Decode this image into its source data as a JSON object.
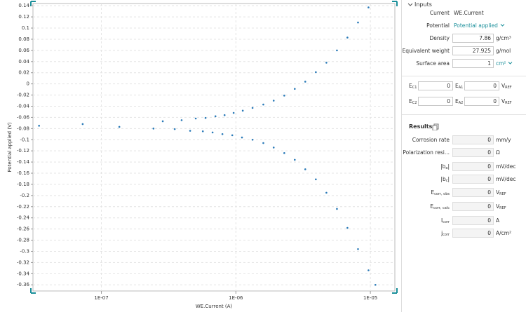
{
  "chart_data": {
    "type": "scatter",
    "xlabel": "WE.Current (A)",
    "ylabel": "Potential applied (V)",
    "xscale": "log",
    "grid": true,
    "xlim": [
      3.1e-08,
      1.52e-05
    ],
    "ylim": [
      -0.371,
      0.144
    ],
    "xticks": [
      {
        "value": 1e-07,
        "label": "1E-07"
      },
      {
        "value": 1e-06,
        "label": "1E-06"
      },
      {
        "value": 1e-05,
        "label": "1E-05"
      }
    ],
    "yticks": [
      0.14,
      0.12,
      0.1,
      0.08,
      0.06,
      0.04,
      0.02,
      0,
      -0.02,
      -0.04,
      -0.06,
      -0.08,
      -0.1,
      -0.12,
      -0.14,
      -0.16,
      -0.18,
      -0.2,
      -0.22,
      -0.24,
      -0.26,
      -0.28,
      -0.3,
      -0.32,
      -0.34,
      -0.36
    ],
    "series": [
      {
        "color": "#2a7ab8",
        "x": [
          3.44e-08,
          7.26e-08,
          1.36e-07,
          2.86e-07,
          3.95e-07,
          5.03e-07,
          5.95e-07,
          7.05e-07,
          8.24e-07,
          9.62e-07,
          1.125e-06,
          1.33e-06,
          1.6e-06,
          1.91e-06,
          2.29e-06,
          2.74e-06,
          3.28e-06,
          3.93e-06,
          4.71e-06,
          5.64e-06,
          6.75e-06,
          8.09e-06,
          9.68e-06
        ],
        "values": [
          -0.075,
          -0.072,
          -0.077,
          -0.067,
          -0.065,
          -0.062,
          -0.061,
          -0.058,
          -0.056,
          -0.052,
          -0.048,
          -0.043,
          -0.037,
          -0.03,
          -0.021,
          -0.009,
          0.004,
          0.021,
          0.038,
          0.06,
          0.083,
          0.11,
          0.137
        ]
      },
      {
        "color": "#2a7ab8",
        "x": [
          2.44e-07,
          3.51e-07,
          4.57e-07,
          5.68e-07,
          6.71e-07,
          7.94e-07,
          9.4e-07,
          1.11e-06,
          1.33e-06,
          1.6e-06,
          1.91e-06,
          2.29e-06,
          2.74e-06,
          3.28e-06,
          3.93e-06,
          4.71e-06,
          5.64e-06,
          6.75e-06,
          8.09e-06,
          9.68e-06,
          1.09e-05
        ],
        "values": [
          -0.08,
          -0.081,
          -0.084,
          -0.085,
          -0.087,
          -0.09,
          -0.092,
          -0.096,
          -0.1,
          -0.106,
          -0.114,
          -0.124,
          -0.136,
          -0.153,
          -0.171,
          -0.195,
          -0.224,
          -0.258,
          -0.296,
          -0.334,
          -0.36
        ]
      }
    ]
  },
  "panel": {
    "inputs": {
      "title": "Inputs",
      "rows": [
        {
          "label": "Current",
          "value": "WE.Current"
        },
        {
          "label": "Potential",
          "value": "Potential applied",
          "dropdown": true
        },
        {
          "label": "Density",
          "value": 7.86,
          "unit": "g/cm³"
        },
        {
          "label": "Equivalent weight",
          "value": 27.925,
          "unit": "g/mol"
        },
        {
          "label": "Surface area",
          "value": 1,
          "unit": "cm²",
          "dropdown": true
        }
      ]
    },
    "tafel": [
      [
        {
          "label": {
            "main": "E",
            "sub": "C1"
          },
          "value": 0
        },
        {
          "label": {
            "main": "E",
            "sub": "A1"
          },
          "value": 0,
          "unit": {
            "main": "V",
            "sub": "REF"
          }
        }
      ],
      [
        {
          "label": {
            "main": "E",
            "sub": "C2"
          },
          "value": 0
        },
        {
          "label": {
            "main": "E",
            "sub": "A2"
          },
          "value": 0,
          "unit": {
            "main": "V",
            "sub": "REF"
          }
        }
      ]
    ],
    "results": {
      "title": "Results",
      "rows": [
        {
          "label": {
            "main": "Corrosion rate"
          },
          "value": 0,
          "unit": {
            "main": "mm/y"
          }
        },
        {
          "label": {
            "main": "Polarization resi..."
          },
          "value": 0,
          "unit": {
            "main": "Ω"
          }
        },
        {
          "label": {
            "main": "|b",
            "sub": "a",
            "after": "|"
          },
          "value": 0,
          "unit": {
            "main": "mV/dec"
          }
        },
        {
          "label": {
            "main": "|b",
            "sub": "c",
            "after": "|"
          },
          "value": 0,
          "unit": {
            "main": "mV/dec"
          }
        },
        {
          "label": {
            "main": "E",
            "sub": "corr, obs"
          },
          "value": 0,
          "unit": {
            "main": "V",
            "sub": "REF"
          }
        },
        {
          "label": {
            "main": "E",
            "sub": "corr, calc"
          },
          "value": 0,
          "unit": {
            "main": "V",
            "sub": "REF"
          }
        },
        {
          "label": {
            "main": "I",
            "sub": "corr"
          },
          "value": 0,
          "unit": {
            "main": "A"
          }
        },
        {
          "label": {
            "main": "j",
            "sub": "corr"
          },
          "value": 0,
          "unit": {
            "main": "A/cm²"
          }
        }
      ]
    }
  }
}
